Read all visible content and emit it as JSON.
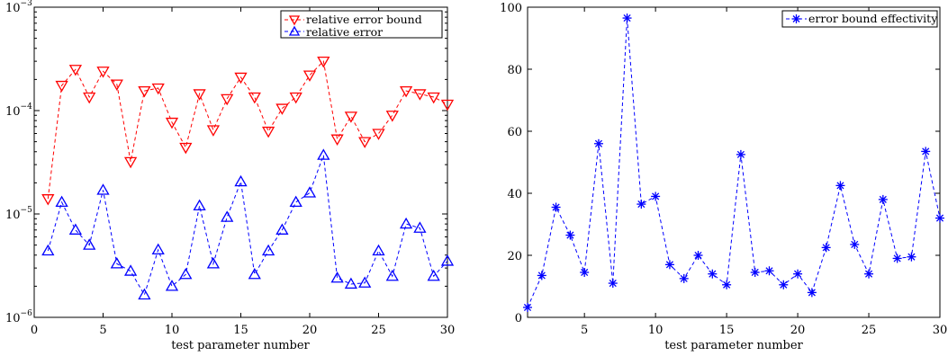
{
  "chart_data": [
    {
      "type": "line",
      "yscale": "log",
      "xlabel": "test parameter number",
      "ylabel": "",
      "xlim": [
        0,
        30
      ],
      "ylim": [
        1e-06,
        0.001
      ],
      "x_ticks": [
        0,
        5,
        10,
        15,
        20,
        25,
        30
      ],
      "y_ticks": [
        1e-06,
        1e-05,
        0.0001,
        0.001
      ],
      "y_tick_labels": [
        {
          "base": "10",
          "exp": "−6"
        },
        {
          "base": "10",
          "exp": "−5"
        },
        {
          "base": "10",
          "exp": "−4"
        },
        {
          "base": "10",
          "exp": "−3"
        }
      ],
      "legend_position": "top-right",
      "x": [
        1,
        2,
        3,
        4,
        5,
        6,
        7,
        8,
        9,
        10,
        11,
        12,
        13,
        14,
        15,
        16,
        17,
        18,
        19,
        20,
        21,
        22,
        23,
        24,
        25,
        26,
        27,
        28,
        29,
        30
      ],
      "series": [
        {
          "name": "relative error bound",
          "color": "#ff0000",
          "marker": "triangle-down",
          "linestyle": "dashed",
          "values": [
            1.4e-05,
            0.000175,
            0.00025,
            0.000135,
            0.00024,
            0.00018,
            3.2e-05,
            0.000155,
            0.000165,
            7.7e-05,
            4.4e-05,
            0.000145,
            6.5e-05,
            0.00013,
            0.00021,
            0.000135,
            6.3e-05,
            0.000105,
            0.000135,
            0.00022,
            0.0003,
            5.3e-05,
            8.8e-05,
            5e-05,
            6e-05,
            9e-05,
            0.000155,
            0.000145,
            0.000135,
            0.000115
          ]
        },
        {
          "name": "relative error",
          "color": "#0000ff",
          "marker": "triangle-up",
          "linestyle": "dashed",
          "values": [
            4.4e-06,
            1.3e-05,
            7e-06,
            5e-06,
            1.7e-05,
            3.3e-06,
            2.8e-06,
            1.65e-06,
            4.5e-06,
            2e-06,
            2.6e-06,
            1.2e-05,
            3.3e-06,
            9.3e-06,
            2.05e-05,
            2.6e-06,
            4.4e-06,
            7e-06,
            1.3e-05,
            1.6e-05,
            3.7e-05,
            2.4e-06,
            2.1e-06,
            2.15e-06,
            4.4e-06,
            2.5e-06,
            8e-06,
            7.3e-06,
            2.5e-06,
            3.5e-06
          ]
        }
      ]
    },
    {
      "type": "line",
      "yscale": "linear",
      "xlabel": "test parameter number",
      "ylabel": "",
      "xlim": [
        1,
        30
      ],
      "ylim": [
        0,
        100
      ],
      "x_ticks": [
        5,
        10,
        15,
        20,
        25,
        30
      ],
      "y_ticks": [
        0,
        20,
        40,
        60,
        80,
        100
      ],
      "legend_position": "top-right",
      "x": [
        1,
        2,
        3,
        4,
        5,
        6,
        7,
        8,
        9,
        10,
        11,
        12,
        13,
        14,
        15,
        16,
        17,
        18,
        19,
        20,
        21,
        22,
        23,
        24,
        25,
        26,
        27,
        28,
        29,
        30
      ],
      "series": [
        {
          "name": "error bound effectivity",
          "color": "#0000ff",
          "marker": "asterisk",
          "linestyle": "dashed",
          "values": [
            3.2,
            13.5,
            35.5,
            26.5,
            14.5,
            56,
            11,
            96.5,
            36.5,
            39,
            17,
            12.5,
            20,
            14,
            10.5,
            52.5,
            14.5,
            15,
            10.5,
            14,
            8,
            22.5,
            42.5,
            23.5,
            14,
            38,
            19,
            19.5,
            53.5,
            32
          ]
        }
      ]
    }
  ]
}
